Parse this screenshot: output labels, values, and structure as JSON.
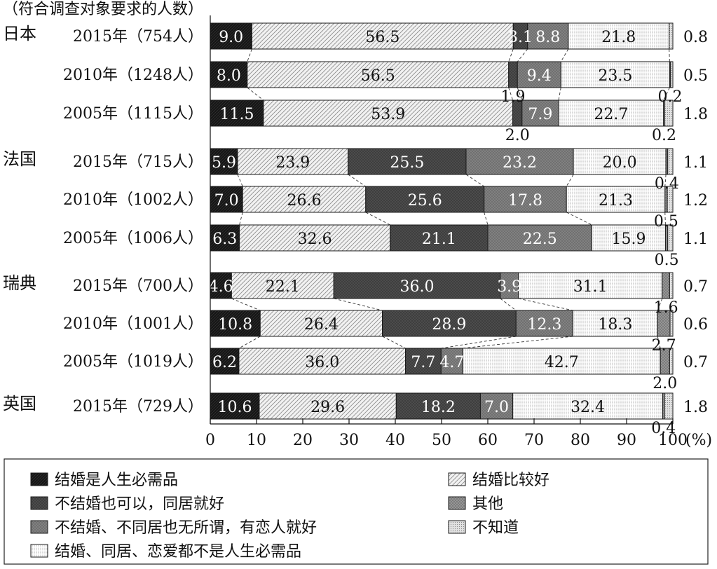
{
  "chart_data": {
    "type": "bar",
    "orientation": "horizontal",
    "stacked": "percent",
    "unit_note": "（符合调查对象要求的人数）",
    "xlim": [
      0,
      100
    ],
    "x_ticks": [
      "0",
      "10",
      "20",
      "30",
      "40",
      "50",
      "60",
      "70",
      "80",
      "90",
      "100"
    ],
    "x_unit": "(%)",
    "series": [
      {
        "name": "结婚是人生必需品",
        "fill": "black"
      },
      {
        "name": "结婚比较好",
        "fill": "hatch-light"
      },
      {
        "name": "不结婚也可以，同居就好",
        "fill": "dark-crosshatch"
      },
      {
        "name": "不结婚、不同居也无所谓，有恋人就好",
        "fill": "mid-gray"
      },
      {
        "name": "结婚、同居、恋爱都不是人生必需品",
        "fill": "vertical-lines"
      },
      {
        "name": "其他",
        "fill": "gray-crosshatch"
      },
      {
        "name": "不知道",
        "fill": "dotted"
      }
    ],
    "groups": [
      {
        "country": "日本",
        "rows": [
          {
            "year": "2015年（754人）",
            "values": [
              9.0,
              56.5,
              3.1,
              8.8,
              21.8,
              0.0,
              0.8
            ],
            "labels": [
              "9.0",
              "56.5",
              "3.1",
              "8.8",
              "21.8",
              "",
              "0.8"
            ]
          },
          {
            "year": "2010年（1248人）",
            "values": [
              8.0,
              56.5,
              1.9,
              9.4,
              23.5,
              0.2,
              0.5
            ],
            "labels": [
              "8.0",
              "56.5",
              "1.9",
              "9.4",
              "23.5",
              "0.2",
              "0.5"
            ]
          },
          {
            "year": "2005年（1115人）",
            "values": [
              11.5,
              53.9,
              2.0,
              7.9,
              22.7,
              0.2,
              1.8
            ],
            "labels": [
              "11.5",
              "53.9",
              "2.0",
              "7.9",
              "22.7",
              "0.2",
              "1.8"
            ]
          }
        ]
      },
      {
        "country": "法国",
        "rows": [
          {
            "year": "2015年（715人）",
            "values": [
              5.9,
              23.9,
              25.5,
              23.2,
              20.0,
              0.4,
              1.1
            ],
            "labels": [
              "5.9",
              "23.9",
              "25.5",
              "23.2",
              "20.0",
              "0.4",
              "1.1"
            ]
          },
          {
            "year": "2010年（1002人）",
            "values": [
              7.0,
              26.6,
              25.6,
              17.8,
              21.3,
              0.5,
              1.2
            ],
            "labels": [
              "7.0",
              "26.6",
              "25.6",
              "17.8",
              "21.3",
              "0.5",
              "1.2"
            ]
          },
          {
            "year": "2005年（1006人）",
            "values": [
              6.3,
              32.6,
              21.1,
              22.5,
              15.9,
              0.5,
              1.1
            ],
            "labels": [
              "6.3",
              "32.6",
              "21.1",
              "22.5",
              "15.9",
              "0.5",
              "1.1"
            ]
          }
        ]
      },
      {
        "country": "瑞典",
        "rows": [
          {
            "year": "2015年（700人）",
            "values": [
              4.6,
              22.1,
              36.0,
              3.9,
              31.1,
              1.6,
              0.7
            ],
            "labels": [
              "4.6",
              "22.1",
              "36.0",
              "3.9",
              "31.1",
              "1.6",
              "0.7"
            ]
          },
          {
            "year": "2010年（1001人）",
            "values": [
              10.8,
              26.4,
              28.9,
              12.3,
              18.3,
              2.7,
              0.6
            ],
            "labels": [
              "10.8",
              "26.4",
              "28.9",
              "12.3",
              "18.3",
              "2.7",
              "0.6"
            ]
          },
          {
            "year": "2005年（1019人）",
            "values": [
              6.2,
              36.0,
              7.7,
              4.7,
              42.7,
              2.0,
              0.7
            ],
            "labels": [
              "6.2",
              "36.0",
              "7.7",
              "4.7",
              "42.7",
              "2.0",
              "0.7"
            ]
          }
        ]
      },
      {
        "country": "英国",
        "rows": [
          {
            "year": "2015年（729人）",
            "values": [
              10.6,
              29.6,
              18.2,
              7.0,
              32.4,
              0.4,
              1.8
            ],
            "labels": [
              "10.6",
              "29.6",
              "18.2",
              "7.0",
              "32.4",
              "0.4",
              "1.8"
            ]
          }
        ]
      }
    ]
  }
}
